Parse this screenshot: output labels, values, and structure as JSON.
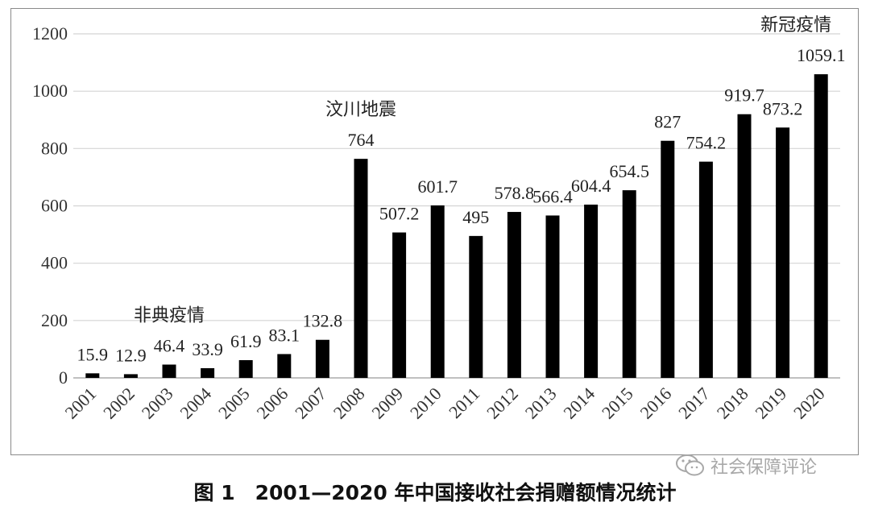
{
  "chart_data": {
    "type": "bar",
    "title": "图 1　2001—2020 年中国接收社会捐赠额情况统计",
    "xlabel": "",
    "ylabel": "",
    "ylim": [
      0,
      1200
    ],
    "yticks": [
      0,
      200,
      400,
      600,
      800,
      1000,
      1200
    ],
    "grid": true,
    "bar_color": "#000000",
    "categories": [
      "2001",
      "2002",
      "2003",
      "2004",
      "2005",
      "2006",
      "2007",
      "2008",
      "2009",
      "2010",
      "2011",
      "2012",
      "2013",
      "2014",
      "2015",
      "2016",
      "2017",
      "2018",
      "2019",
      "2020"
    ],
    "values": [
      15.9,
      12.9,
      46.4,
      33.9,
      61.9,
      83.1,
      132.8,
      764,
      507.2,
      601.7,
      495,
      578.8,
      566.4,
      604.4,
      654.5,
      827,
      754.2,
      919.7,
      873.2,
      1059.1
    ],
    "data_labels": [
      "15.9",
      "12.9",
      "46.4",
      "33.9",
      "61.9",
      "83.1",
      "132.8",
      "764",
      "507.2",
      "601.7",
      "495",
      "578.8",
      "566.4",
      "604.4",
      "654.5",
      "827",
      "754.2",
      "919.7",
      "873.2",
      "1059.1"
    ],
    "annotations": [
      {
        "text": "非典疫情",
        "year": "2003"
      },
      {
        "text": "汶川地震",
        "year": "2008"
      },
      {
        "text": "新冠疫情",
        "year": "2020"
      }
    ]
  },
  "watermark": {
    "text": "社会保障评论",
    "icon": "wechat-icon"
  },
  "caption": "图 1　2001—2020 年中国接收社会捐赠额情况统计"
}
